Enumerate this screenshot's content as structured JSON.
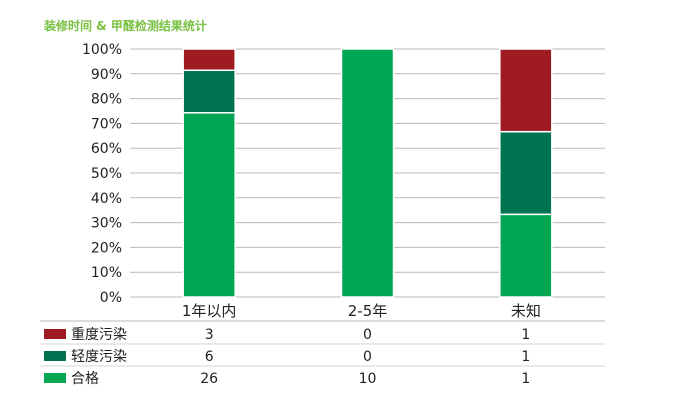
{
  "chart_data": {
    "type": "bar",
    "stacked": true,
    "normalized": true,
    "title": "装修时间 & 甲醛检测结果统计",
    "categories": [
      "1年以内",
      "2-5年",
      "未知"
    ],
    "yticks": [
      "0%",
      "10%",
      "20%",
      "30%",
      "40%",
      "50%",
      "60%",
      "70%",
      "80%",
      "90%",
      "100%"
    ],
    "ylim": [
      0,
      100
    ],
    "grid": true,
    "series": [
      {
        "name": "合格",
        "color": "#00a651",
        "values": [
          26,
          10,
          1
        ]
      },
      {
        "name": "轻度污染",
        "color": "#007351",
        "values": [
          6,
          0,
          1
        ]
      },
      {
        "name": "重度污染",
        "color": "#9e1b22",
        "values": [
          3,
          0,
          1
        ]
      }
    ],
    "table_rows": [
      "重度污染",
      "轻度污染",
      "合格"
    ]
  }
}
